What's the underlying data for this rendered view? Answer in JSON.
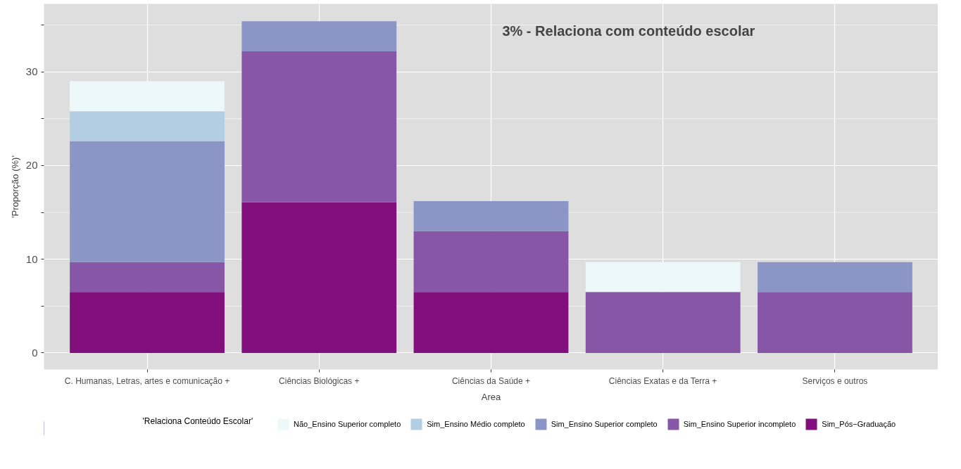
{
  "chart_data": {
    "type": "bar",
    "stacked": true,
    "xlabel": "Area",
    "ylabel": "'Proporção (%)'",
    "legend_title": "'Relaciona Conteúdo Escolar'",
    "legend": "bottom",
    "grid": true,
    "annotations": [
      "3% - Relaciona com conteúdo escolar"
    ],
    "categories": [
      "C. Humanas, Letras, artes e comunicação +",
      "Ciências Biológicas +",
      "Ciências da Saúde +",
      "Ciências Exatas e da Terra +",
      "Serviços e outros"
    ],
    "ylim": [
      -1.77,
      37.26
    ],
    "yticks": [
      0,
      {
        "value": 5,
        "label": null
      },
      10,
      {
        "value": 15,
        "label": null
      },
      20,
      {
        "value": 25,
        "label": null
      },
      30,
      {
        "value": 35,
        "label": null
      }
    ],
    "series": [
      {
        "name": "Sim_Pós−Graduação",
        "color": "#810f7c",
        "values": [
          6.5,
          16.1,
          6.5,
          null,
          null
        ]
      },
      {
        "name": "Sim_Ensino Superior incompleto",
        "color": "#8856a7",
        "values": [
          3.2,
          16.1,
          6.5,
          6.5,
          6.5
        ]
      },
      {
        "name": "Sim_Ensino Superior completo",
        "color": "#8c96c6",
        "values": [
          12.9,
          3.2,
          3.2,
          null,
          3.2
        ]
      },
      {
        "name": "Sim_Ensino Médio completo",
        "color": "#b3cde3",
        "values": [
          3.2,
          null,
          null,
          null,
          null
        ]
      },
      {
        "name": "Não_Ensino Superior completo",
        "color": "#edf8fb",
        "values": [
          3.2,
          null,
          null,
          3.2,
          null
        ]
      }
    ]
  }
}
